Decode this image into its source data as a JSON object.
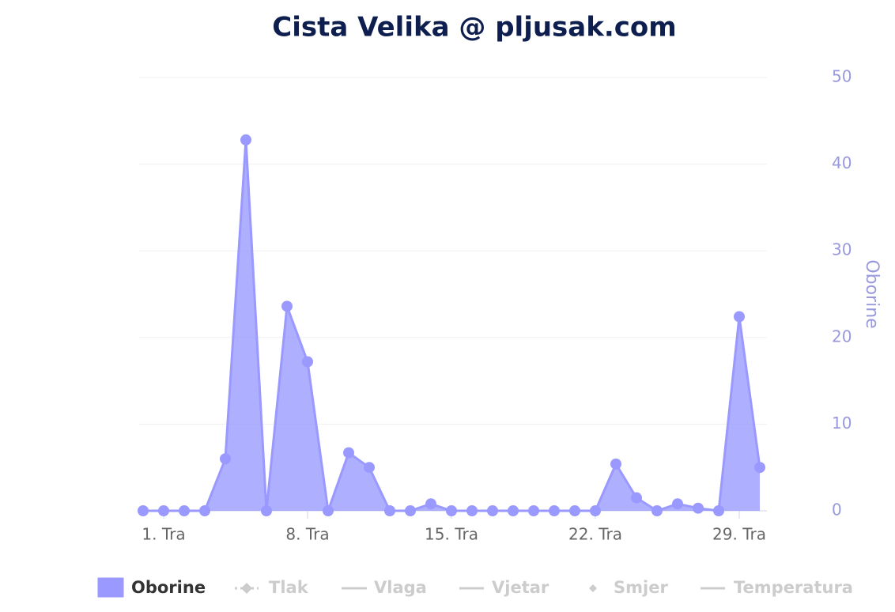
{
  "chart_data": {
    "type": "area",
    "title": "Cista Velika @ pljusak.com",
    "y_label": "Oborine",
    "categories": [
      null,
      "1. Tra",
      null,
      null,
      null,
      null,
      null,
      null,
      "8. Tra",
      null,
      null,
      null,
      null,
      null,
      null,
      "15. Tra",
      null,
      null,
      null,
      null,
      null,
      null,
      "22. Tra",
      null,
      null,
      null,
      null,
      null,
      null,
      "29. Tra",
      null
    ],
    "series": [
      {
        "name": "Oborine",
        "color": "#9999ff",
        "values": [
          0,
          0,
          0,
          0,
          6.0,
          42.8,
          0,
          23.6,
          17.2,
          0,
          6.7,
          5.0,
          0,
          0,
          0.8,
          0,
          0,
          0,
          0,
          0,
          0,
          0,
          0,
          5.4,
          1.5,
          0,
          0.8,
          0.3,
          0,
          22.4,
          5.0
        ]
      }
    ],
    "legend": [
      {
        "name": "Oborine",
        "visible": true
      },
      {
        "name": "Tlak",
        "visible": false
      },
      {
        "name": "Vlaga",
        "visible": false
      },
      {
        "name": "Vjetar",
        "visible": false
      },
      {
        "name": "Smjer",
        "visible": false
      },
      {
        "name": "Temperatura",
        "visible": false
      }
    ],
    "ylim": [
      0,
      50
    ],
    "yticks": [
      0,
      10,
      20,
      30,
      40,
      50
    ],
    "grid": true,
    "y_axis_side": "right"
  }
}
